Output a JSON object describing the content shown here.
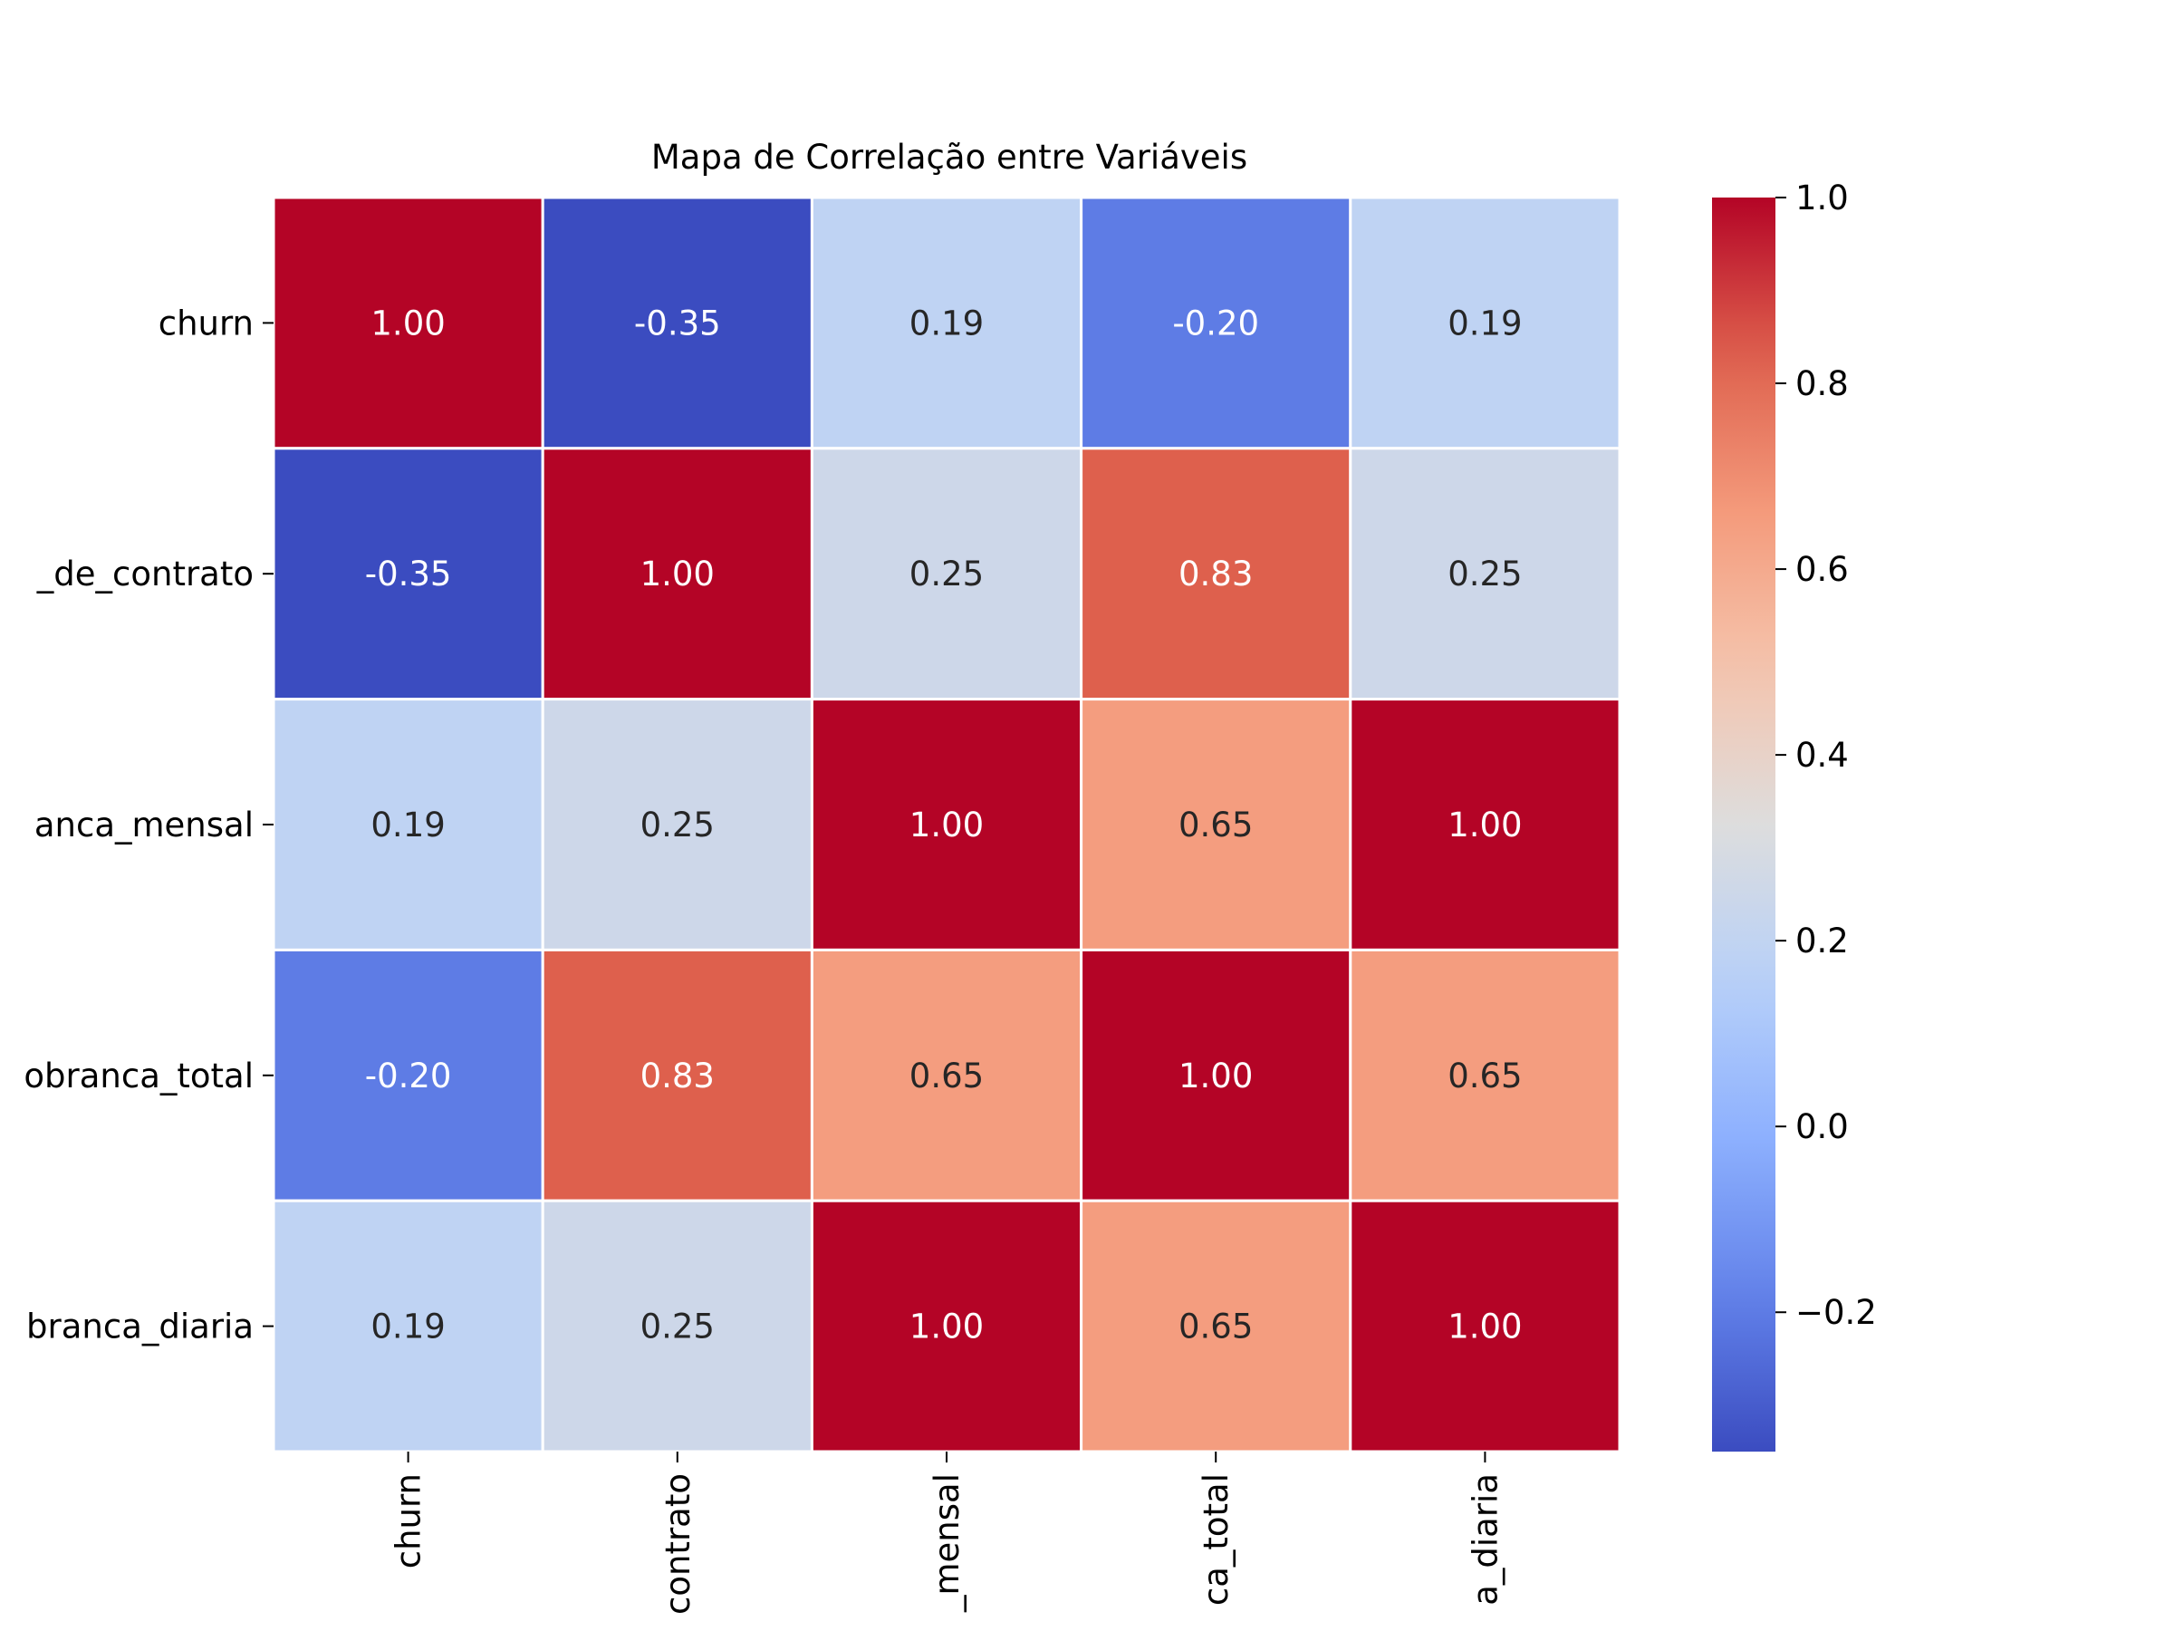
{
  "chart_data": {
    "type": "heatmap",
    "title": "Mapa de Correlação entre Variáveis",
    "row_labels": [
      "churn",
      "_de_contrato",
      "anca_mensal",
      "obranca_total",
      "branca_diaria"
    ],
    "col_labels": [
      "churn",
      "contrato",
      "_mensal",
      "ca_total",
      "a_diaria"
    ],
    "values": [
      [
        1.0,
        -0.35,
        0.19,
        -0.2,
        0.19
      ],
      [
        -0.35,
        1.0,
        0.25,
        0.83,
        0.25
      ],
      [
        0.19,
        0.25,
        1.0,
        0.65,
        1.0
      ],
      [
        -0.2,
        0.83,
        0.65,
        1.0,
        0.65
      ],
      [
        0.19,
        0.25,
        1.0,
        0.65,
        1.0
      ]
    ],
    "cell_labels": [
      [
        "1.00",
        "-0.35",
        "0.19",
        "-0.20",
        "0.19"
      ],
      [
        "-0.35",
        "1.00",
        "0.25",
        "0.83",
        "0.25"
      ],
      [
        "0.19",
        "0.25",
        "1.00",
        "0.65",
        "1.00"
      ],
      [
        "-0.20",
        "0.83",
        "0.65",
        "1.00",
        "0.65"
      ],
      [
        "0.19",
        "0.25",
        "1.00",
        "0.65",
        "1.00"
      ]
    ],
    "colormap": "coolwarm",
    "vmin": -0.35,
    "vmax": 1.0,
    "colorbar": {
      "ticks": [
        -0.2,
        0.0,
        0.2,
        0.4,
        0.6,
        0.8,
        1.0
      ],
      "tick_labels": [
        "−0.2",
        "0.0",
        "0.2",
        "0.4",
        "0.6",
        "0.8",
        "1.0"
      ]
    },
    "grid": false,
    "cell_separator_color": "#ffffff"
  }
}
